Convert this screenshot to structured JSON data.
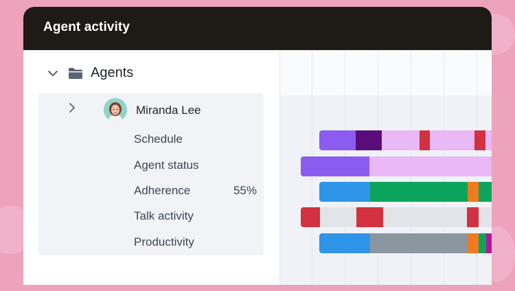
{
  "panel": {
    "title": "Agent activity"
  },
  "tree": {
    "group_label": "Agents",
    "agent": {
      "name": "Miranda Lee",
      "metrics": [
        {
          "label": "Schedule",
          "value": ""
        },
        {
          "label": "Agent status",
          "value": ""
        },
        {
          "label": "Adherence",
          "value": "55%"
        },
        {
          "label": "Talk activity",
          "value": ""
        },
        {
          "label": "Productivity",
          "value": ""
        }
      ]
    }
  },
  "icons": {
    "group_toggle": "chevron-down-icon",
    "group_folder": "folder-icon",
    "agent_toggle": "chevron-right-icon",
    "agent_avatar": "avatar"
  },
  "colors": {
    "background": "#eea3bd",
    "titlebar": "#1e1a16",
    "purple": "#8b5cf0",
    "dark_purple": "#5a0d7a",
    "light_purple": "#e9b8f5",
    "red": "#d2313f",
    "blue": "#2f95e8",
    "green": "#0aa55a",
    "orange": "#f07a1e",
    "gray": "#8c969e",
    "light_gray": "#e2e4ea",
    "magenta": "#b0189c"
  },
  "timeline": {
    "rows": [
      {
        "name": "Schedule",
        "segments": [
          {
            "state": "purple",
            "share": 0.21
          },
          {
            "state": "dark_purple",
            "share": 0.15
          },
          {
            "state": "light_purple",
            "share": 0.22
          },
          {
            "state": "red",
            "share": 0.06
          },
          {
            "state": "light_purple",
            "share": 0.26
          },
          {
            "state": "red",
            "share": 0.065
          },
          {
            "state": "light_purple",
            "share": 0.035
          }
        ]
      },
      {
        "name": "Agent status",
        "segments": [
          {
            "state": "purple",
            "share": 0.36
          },
          {
            "state": "light_purple",
            "share": 0.64
          }
        ]
      },
      {
        "name": "Adherence",
        "segments": [
          {
            "state": "blue",
            "share": 0.295
          },
          {
            "state": "green",
            "share": 0.565
          },
          {
            "state": "orange",
            "share": 0.065
          },
          {
            "state": "green",
            "share": 0.075
          }
        ]
      },
      {
        "name": "Talk activity",
        "segments": [
          {
            "state": "red",
            "share": 0.1
          },
          {
            "state": "light_gray",
            "share": 0.19
          },
          {
            "state": "red",
            "share": 0.14
          },
          {
            "state": "light_gray",
            "share": 0.44
          },
          {
            "state": "red",
            "share": 0.06
          },
          {
            "state": "light_gray",
            "share": 0.07
          }
        ]
      },
      {
        "name": "Productivity",
        "segments": [
          {
            "state": "blue",
            "share": 0.295
          },
          {
            "state": "gray",
            "share": 0.565
          },
          {
            "state": "orange",
            "share": 0.065
          },
          {
            "state": "green",
            "share": 0.045
          },
          {
            "state": "magenta",
            "share": 0.03
          }
        ]
      }
    ]
  }
}
